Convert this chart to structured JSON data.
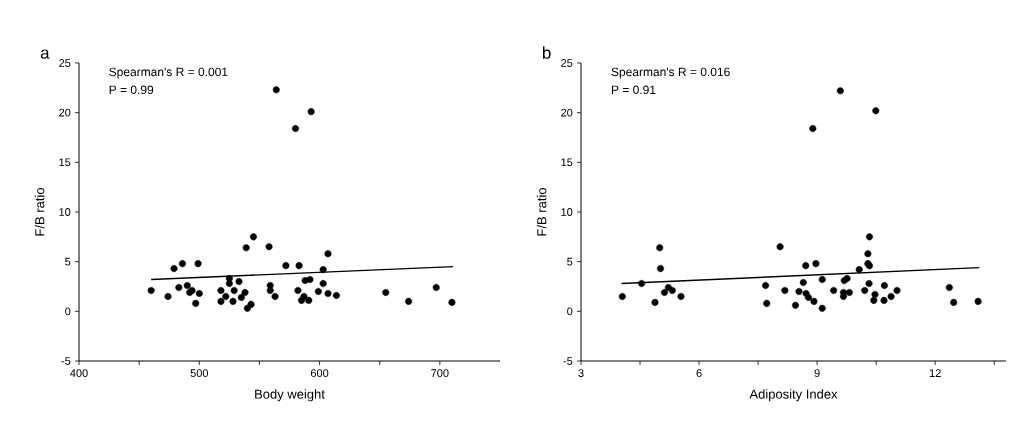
{
  "chart_data": [
    {
      "type": "scatter",
      "xlabel": "Body weight",
      "ylabel": "F/B ratio",
      "annotations": [
        "a",
        "Spearman's R = 0.001",
        "P = 0.99"
      ],
      "xlim": [
        400,
        750
      ],
      "ylim": [
        -5,
        25
      ],
      "xticks": [
        400,
        {
          "value": 450,
          "label": null
        },
        500,
        {
          "value": 550,
          "label": null
        },
        600,
        {
          "value": 650,
          "label": null
        },
        700
      ],
      "yticks": [
        -5,
        0,
        5,
        10,
        15,
        20,
        25
      ],
      "marker": "circle",
      "series": [
        {
          "color": "#000000",
          "x": [
            460,
            474,
            479,
            483,
            486,
            490,
            492,
            494,
            497,
            499,
            500,
            518,
            518,
            522,
            525,
            525,
            529,
            528,
            533,
            535,
            538,
            539,
            540,
            543,
            545,
            558,
            559,
            559,
            563,
            564,
            572,
            580,
            583,
            582,
            585,
            587,
            588,
            592,
            591,
            593,
            599,
            603,
            603,
            607,
            607,
            614,
            655,
            674,
            697,
            710
          ],
          "values": [
            2.1,
            1.5,
            4.3,
            2.4,
            4.8,
            2.6,
            1.9,
            2.1,
            0.8,
            4.8,
            1.8,
            2.1,
            1.0,
            1.5,
            3.3,
            2.8,
            2.1,
            1.0,
            3.0,
            1.4,
            1.9,
            6.4,
            0.3,
            0.7,
            7.5,
            6.5,
            2.6,
            2.1,
            1.5,
            22.3,
            4.6,
            18.4,
            4.6,
            2.1,
            1.1,
            1.5,
            3.1,
            3.2,
            1.1,
            20.1,
            2.0,
            4.2,
            2.8,
            5.8,
            1.8,
            1.6,
            1.9,
            1.0,
            2.4,
            0.9
          ]
        },
        {
          "type": "line",
          "color": "#000000",
          "marker": "none",
          "x": [
            460,
            711
          ],
          "values": [
            3.2,
            4.5
          ]
        }
      ]
    },
    {
      "type": "scatter",
      "xlabel": "Adiposity Index",
      "ylabel": "F/B ratio",
      "annotations": [
        "b",
        "Spearman's R = 0.016",
        "P = 0.91"
      ],
      "xlim": [
        3,
        13.8
      ],
      "ylim": [
        -5,
        25
      ],
      "xticks": [
        3,
        {
          "value": 4.5,
          "label": null
        },
        6,
        {
          "value": 7.5,
          "label": null
        },
        9,
        {
          "value": 10.5,
          "label": null
        },
        12,
        {
          "value": 13.5,
          "label": null
        }
      ],
      "yticks": [
        -5,
        0,
        5,
        10,
        15,
        20,
        25
      ],
      "marker": "circle",
      "series": [
        {
          "color": "#000000",
          "x": [
            4.05,
            4.54,
            4.88,
            5.0,
            5.02,
            5.12,
            5.22,
            5.32,
            5.54,
            7.69,
            7.72,
            8.06,
            8.18,
            8.45,
            8.54,
            8.65,
            8.71,
            8.72,
            8.78,
            8.92,
            8.97,
            8.89,
            9.13,
            9.13,
            9.42,
            9.59,
            9.67,
            9.69,
            9.76,
            9.67,
            9.82,
            10.07,
            10.21,
            10.29,
            10.29,
            10.33,
            10.32,
            10.33,
            10.47,
            10.44,
            10.49,
            10.7,
            10.71,
            10.88,
            11.03,
            12.36,
            12.47,
            13.09
          ],
          "values": [
            1.5,
            2.8,
            0.9,
            6.4,
            4.3,
            1.9,
            2.4,
            2.1,
            1.5,
            2.6,
            0.8,
            6.5,
            2.1,
            0.6,
            2.0,
            2.9,
            4.6,
            1.8,
            1.4,
            1.0,
            4.8,
            18.4,
            3.2,
            0.3,
            2.1,
            22.2,
            1.9,
            3.1,
            3.3,
            1.5,
            1.9,
            4.2,
            2.1,
            5.8,
            4.8,
            4.6,
            2.8,
            7.5,
            1.7,
            1.1,
            20.2,
            1.1,
            2.6,
            1.5,
            2.1,
            2.4,
            0.9,
            1.0
          ]
        },
        {
          "type": "line",
          "color": "#000000",
          "marker": "none",
          "x": [
            4.03,
            13.12
          ],
          "values": [
            2.8,
            4.4
          ]
        }
      ]
    }
  ]
}
